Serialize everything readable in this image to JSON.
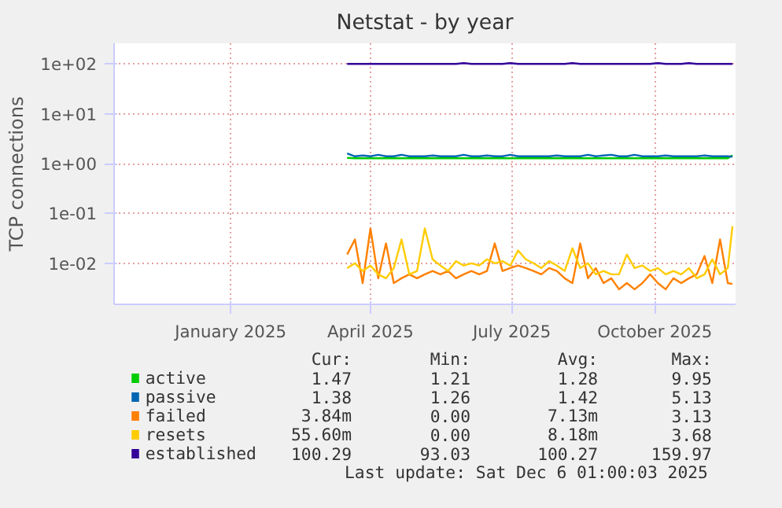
{
  "chart_data": {
    "type": "line",
    "title": "Netstat - by year",
    "ylabel": "TCP connections",
    "x": [
      "2025-04-01",
      "2025-04-06",
      "2025-04-11",
      "2025-04-16",
      "2025-04-21",
      "2025-04-26",
      "2025-05-01",
      "2025-05-06",
      "2025-05-11",
      "2025-05-16",
      "2025-05-21",
      "2025-05-26",
      "2025-05-31",
      "2025-06-05",
      "2025-06-10",
      "2025-06-15",
      "2025-06-20",
      "2025-06-25",
      "2025-06-30",
      "2025-07-05",
      "2025-07-10",
      "2025-07-15",
      "2025-07-20",
      "2025-07-25",
      "2025-07-30",
      "2025-08-04",
      "2025-08-09",
      "2025-08-14",
      "2025-08-19",
      "2025-08-24",
      "2025-08-29",
      "2025-09-03",
      "2025-09-08",
      "2025-09-13",
      "2025-09-18",
      "2025-09-23",
      "2025-09-28",
      "2025-10-03",
      "2025-10-08",
      "2025-10-13",
      "2025-10-18",
      "2025-10-23",
      "2025-10-28",
      "2025-11-02",
      "2025-11-07",
      "2025-11-12",
      "2025-11-17",
      "2025-11-22",
      "2025-11-27",
      "2025-12-02",
      "2025-12-05"
    ],
    "series": [
      {
        "name": "active",
        "color": "#00cc00",
        "values": [
          1.3,
          1.28,
          1.28,
          1.28,
          1.28,
          1.28,
          1.28,
          1.28,
          1.28,
          1.28,
          1.28,
          1.28,
          1.28,
          1.28,
          1.28,
          1.28,
          1.28,
          1.28,
          1.28,
          1.28,
          1.28,
          1.28,
          1.28,
          1.28,
          1.28,
          1.28,
          1.28,
          1.28,
          1.28,
          1.28,
          1.28,
          1.28,
          1.28,
          1.28,
          1.28,
          1.28,
          1.28,
          1.28,
          1.28,
          1.28,
          1.28,
          1.28,
          1.28,
          1.28,
          1.28,
          1.28,
          1.28,
          1.28,
          1.28,
          1.28,
          1.47
        ]
      },
      {
        "name": "passive",
        "color": "#0066b3",
        "values": [
          1.6,
          1.4,
          1.45,
          1.4,
          1.5,
          1.4,
          1.4,
          1.5,
          1.4,
          1.4,
          1.4,
          1.45,
          1.4,
          1.4,
          1.4,
          1.5,
          1.4,
          1.4,
          1.45,
          1.4,
          1.4,
          1.5,
          1.4,
          1.4,
          1.4,
          1.4,
          1.4,
          1.45,
          1.4,
          1.4,
          1.4,
          1.5,
          1.4,
          1.45,
          1.5,
          1.4,
          1.4,
          1.5,
          1.4,
          1.4,
          1.4,
          1.45,
          1.4,
          1.4,
          1.4,
          1.4,
          1.45,
          1.4,
          1.4,
          1.4,
          1.38
        ]
      },
      {
        "name": "failed",
        "color": "#ff8000",
        "values": [
          0.015,
          0.03,
          0.004,
          0.05,
          0.005,
          0.025,
          0.004,
          0.005,
          0.006,
          0.005,
          0.006,
          0.007,
          0.006,
          0.007,
          0.005,
          0.006,
          0.007,
          0.006,
          0.007,
          0.025,
          0.007,
          0.008,
          0.009,
          0.008,
          0.007,
          0.006,
          0.008,
          0.007,
          0.005,
          0.004,
          0.025,
          0.005,
          0.008,
          0.004,
          0.005,
          0.003,
          0.004,
          0.003,
          0.004,
          0.006,
          0.004,
          0.003,
          0.005,
          0.004,
          0.005,
          0.006,
          0.014,
          0.004,
          0.03,
          0.004,
          0.00384
        ]
      },
      {
        "name": "resets",
        "color": "#ffcc00",
        "values": [
          0.008,
          0.01,
          0.007,
          0.009,
          0.006,
          0.005,
          0.008,
          0.03,
          0.006,
          0.007,
          0.05,
          0.012,
          0.009,
          0.007,
          0.011,
          0.009,
          0.01,
          0.009,
          0.012,
          0.01,
          0.011,
          0.009,
          0.018,
          0.012,
          0.01,
          0.008,
          0.011,
          0.009,
          0.007,
          0.02,
          0.008,
          0.01,
          0.006,
          0.007,
          0.006,
          0.006,
          0.015,
          0.008,
          0.009,
          0.007,
          0.008,
          0.006,
          0.007,
          0.006,
          0.008,
          0.005,
          0.006,
          0.012,
          0.006,
          0.008,
          0.0556
        ]
      },
      {
        "name": "established",
        "color": "#330099",
        "values": [
          100.3,
          100.3,
          100.3,
          100.3,
          100.3,
          100.3,
          100.3,
          100.3,
          100.3,
          100.3,
          100.3,
          100.3,
          100.3,
          100.3,
          100.3,
          104,
          100.3,
          100.3,
          100.3,
          100.3,
          100.3,
          104,
          100.3,
          100.3,
          100.3,
          100.3,
          100.3,
          100.3,
          100.3,
          104,
          100.3,
          100.3,
          100.3,
          100.3,
          100.3,
          100.3,
          100.3,
          100.3,
          100.3,
          100.3,
          104,
          100.3,
          100.3,
          100.3,
          104,
          100.3,
          100.3,
          100.3,
          100.3,
          100.3,
          100.29
        ]
      }
    ],
    "xlim": [
      "2024-11-02",
      "2025-12-07"
    ],
    "xticks": [
      {
        "value": "2025-01-16",
        "label": "January 2025"
      },
      {
        "value": "2025-04-16",
        "label": "April 2025"
      },
      {
        "value": "2025-07-16",
        "label": "July 2025"
      },
      {
        "value": "2025-10-16",
        "label": "October 2025"
      }
    ],
    "ylim": [
      0.0015,
      260
    ],
    "log": true,
    "yticks": [
      {
        "value": 100,
        "label": "1e+02"
      },
      {
        "value": 10,
        "label": "1e+01"
      },
      {
        "value": 1,
        "label": "1e+00"
      },
      {
        "value": 0.1,
        "label": "1e-01"
      },
      {
        "value": 0.01,
        "label": "1e-02"
      }
    ],
    "grid": true,
    "legend": "bottom",
    "annotations": [
      "Cur:",
      "Min:",
      "Avg:",
      "Max:",
      "1.47",
      "1.21",
      "1.28",
      "9.95",
      "1.38",
      "1.26",
      "1.42",
      "5.13",
      "3.84m",
      "0.00",
      "7.13m",
      "3.13",
      "55.60m",
      "0.00",
      "8.18m",
      "3.68",
      "100.29",
      "93.03",
      "100.27",
      "159.97",
      "Last update: Sat Dec  6 01:00:03 2025"
    ]
  }
}
